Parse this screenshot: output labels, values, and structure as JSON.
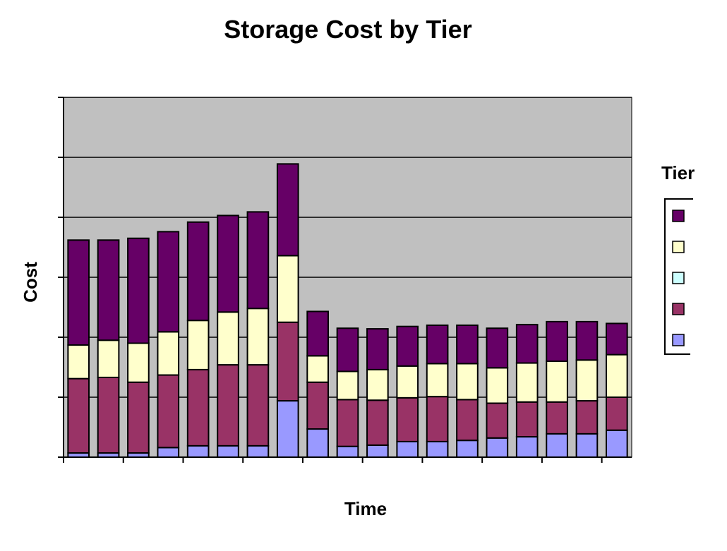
{
  "chart_data": {
    "type": "bar",
    "stacked": true,
    "title": "Storage Cost by Tier",
    "xlabel": "Time",
    "ylabel": "Cost",
    "ylim": [
      0,
      6
    ],
    "y_gridlines": [
      1,
      2,
      3,
      4,
      5,
      6
    ],
    "grid": true,
    "plot_background": "#C0C0C0",
    "x_tick_every": 2,
    "categories": [
      "",
      "",
      "",
      "",
      "",
      "",
      "",
      "",
      "",
      "",
      "",
      "",
      "",
      "",
      "",
      "",
      "",
      "",
      ""
    ],
    "legend": {
      "title": "Tier",
      "placement": "right"
    },
    "series": [
      {
        "color": "#9999FF",
        "values": [
          0.07,
          0.07,
          0.07,
          0.16,
          0.19,
          0.19,
          0.19,
          0.94,
          0.47,
          0.18,
          0.2,
          0.26,
          0.26,
          0.28,
          0.32,
          0.34,
          0.39,
          0.39,
          0.45
        ]
      },
      {
        "color": "#993366",
        "values": [
          1.24,
          1.26,
          1.18,
          1.21,
          1.27,
          1.35,
          1.35,
          1.31,
          0.78,
          0.78,
          0.75,
          0.73,
          0.75,
          0.68,
          0.58,
          0.58,
          0.53,
          0.55,
          0.55
        ]
      },
      {
        "color": "#CCFFFF",
        "values": [
          0,
          0,
          0,
          0,
          0,
          0,
          0,
          0,
          0,
          0,
          0,
          0,
          0,
          0,
          0,
          0,
          0,
          0,
          0
        ]
      },
      {
        "color": "#FFFFCC",
        "values": [
          0.56,
          0.62,
          0.65,
          0.72,
          0.82,
          0.88,
          0.94,
          1.11,
          0.44,
          0.47,
          0.51,
          0.53,
          0.55,
          0.6,
          0.59,
          0.65,
          0.68,
          0.68,
          0.71
        ]
      },
      {
        "color": "#660066",
        "values": [
          1.75,
          1.67,
          1.75,
          1.67,
          1.64,
          1.61,
          1.61,
          1.53,
          0.74,
          0.72,
          0.68,
          0.66,
          0.64,
          0.64,
          0.66,
          0.64,
          0.66,
          0.64,
          0.52
        ]
      }
    ]
  }
}
